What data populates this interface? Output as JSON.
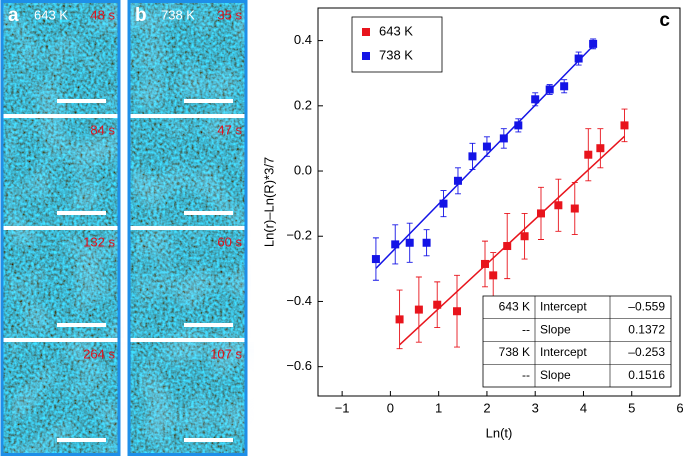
{
  "panels": [
    {
      "label": "a",
      "temperature": "643 K",
      "times": [
        "48 s",
        "84 s",
        "132 s",
        "264 s"
      ]
    },
    {
      "label": "b",
      "temperature": "738 K",
      "times": [
        "35 s",
        "47 s",
        "60 s",
        "107 s"
      ]
    }
  ],
  "chart_data": {
    "type": "scatter",
    "panel_label": "c",
    "x_label": "Ln(t)",
    "y_label": "Ln(r)–Ln(R)*3/7",
    "xlim": [
      -1.5,
      6
    ],
    "ylim": [
      -0.69,
      0.5
    ],
    "xticks": [
      {
        "value": -1,
        "label": "−1"
      },
      0,
      1,
      2,
      3,
      4,
      5,
      6
    ],
    "yticks": [
      {
        "value": -0.6,
        "label": "−0.6"
      },
      {
        "value": -0.4,
        "label": "−0.4"
      },
      {
        "value": -0.2,
        "label": "−0.2"
      },
      {
        "value": 0,
        "label": "0.0"
      },
      0.2,
      0.4
    ],
    "legend": "upper left",
    "series": [
      {
        "name": "643 K",
        "color": "#e8141c",
        "x": [
          0.19,
          0.59,
          0.97,
          1.38,
          1.96,
          2.13,
          2.42,
          2.78,
          3.12,
          3.48,
          3.82,
          4.1,
          4.35,
          4.85
        ],
        "values": [
          -0.455,
          -0.425,
          -0.41,
          -0.43,
          -0.285,
          -0.32,
          -0.23,
          -0.2,
          -0.13,
          -0.105,
          -0.115,
          0.05,
          0.07,
          0.14
        ],
        "errors": [
          0.09,
          0.1,
          0.07,
          0.11,
          0.07,
          0.07,
          0.1,
          0.07,
          0.08,
          0.08,
          0.08,
          0.08,
          0.06,
          0.05
        ]
      },
      {
        "name": "738 K",
        "color": "#1414e6",
        "x": [
          -0.3,
          0.1,
          0.4,
          0.75,
          1.1,
          1.4,
          1.7,
          2.0,
          2.35,
          2.65,
          3.0,
          3.3,
          3.6,
          3.9,
          4.2
        ],
        "values": [
          -0.27,
          -0.225,
          -0.22,
          -0.22,
          -0.1,
          -0.03,
          0.045,
          0.075,
          0.1,
          0.14,
          0.22,
          0.25,
          0.26,
          0.345,
          0.39
        ],
        "errors": [
          0.065,
          0.06,
          0.06,
          0.04,
          0.04,
          0.04,
          0.04,
          0.03,
          0.03,
          0.02,
          0.02,
          0.015,
          0.02,
          0.02,
          0.015
        ]
      }
    ],
    "fit_table": {
      "rows": [
        [
          "643 K",
          "Intercept",
          {
            "value": -0.559,
            "label": "–0.559"
          }
        ],
        [
          "--",
          "Slope",
          0.1372
        ],
        [
          "738 K",
          "Intercept",
          {
            "value": -0.253,
            "label": "–0.253"
          }
        ],
        [
          "--",
          "Slope",
          0.1516
        ]
      ]
    }
  }
}
